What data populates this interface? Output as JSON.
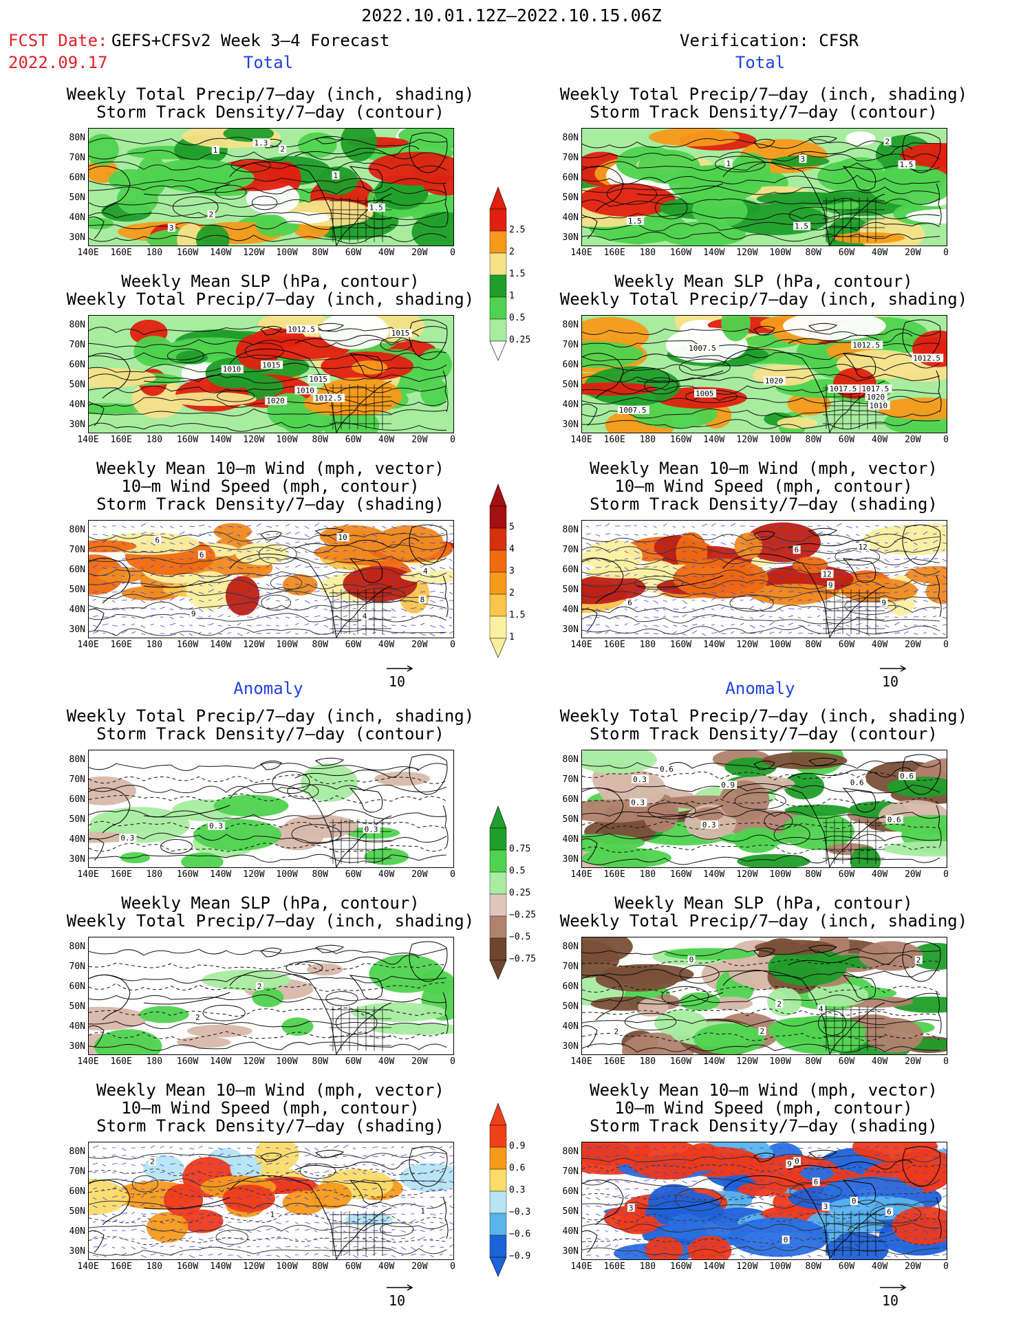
{
  "header": {
    "date_range": "2022.10.01.12Z–2022.10.15.06Z",
    "fcst_date_label": "FCST Date:",
    "model_label": "GEFS+CFSv2 Week 3–4 Forecast",
    "fcst_date": "2022.09.17",
    "verification": "Verification: CFSR"
  },
  "sections": {
    "total_left": "Total",
    "total_right": "Total",
    "anomaly_left": "Anomaly",
    "anomaly_right": "Anomaly"
  },
  "panel_titles": {
    "precip_storm": [
      "Weekly Total Precip/7–day (inch, shading)",
      "Storm Track Density/7–day (contour)"
    ],
    "slp_precip": [
      "Weekly Mean SLP (hPa, contour)",
      "Weekly Total Precip/7–day (inch, shading)"
    ],
    "wind_storm": [
      "Weekly Mean 10–m Wind (mph, vector)",
      "10–m Wind Speed (mph, contour)",
      "Storm Track Density/7–day (shading)"
    ]
  },
  "axes": {
    "lat_labels": [
      "80N",
      "70N",
      "60N",
      "50N",
      "40N",
      "30N"
    ],
    "lon_labels": [
      "140E",
      "160E",
      "180",
      "160W",
      "140W",
      "120W",
      "100W",
      "80W",
      "60W",
      "40W",
      "20W",
      "0"
    ]
  },
  "vector_ref": "10",
  "colorbars": {
    "precip_total": {
      "labels": [
        "2.5",
        "2",
        "1.5",
        "1",
        "0.5",
        "0.25"
      ],
      "colors": [
        "#e02010",
        "#f79a1a",
        "#f7e28a",
        "#1f9e2a",
        "#4fd34f",
        "#a8eca0"
      ]
    },
    "storm_total": {
      "labels": [
        "5",
        "4",
        "3",
        "2",
        "1.5",
        "1"
      ],
      "colors": [
        "#a51010",
        "#d63010",
        "#f06a10",
        "#f79a1a",
        "#fbc44a",
        "#fbf0a0"
      ]
    },
    "precip_anom": {
      "labels": [
        "0.75",
        "0.5",
        "0.25",
        "−0.25",
        "−0.5",
        "−0.75"
      ],
      "colors": [
        "#1f9e2a",
        "#4fd34f",
        "#a8eca0",
        "#e2c6bc",
        "#b0826e",
        "#6e4630"
      ]
    },
    "storm_anom": {
      "labels": [
        "0.9",
        "0.6",
        "0.3",
        "−0.3",
        "−0.6",
        "−0.9"
      ],
      "colors": [
        "#f0401a",
        "#f79a1a",
        "#fbdc6a",
        "#b6e4f4",
        "#5ab4ec",
        "#1e62d8"
      ]
    }
  },
  "map_colors": {
    "precip_light": "#a8eca0",
    "precip_mid": "#4fd34f",
    "precip_dark": "#1f9e2a",
    "precip_yellow": "#f7e28a",
    "precip_orange": "#f79a1a",
    "precip_red": "#e02010",
    "storm_orange": "#f08a20",
    "storm_red": "#c02010",
    "brown_light": "#d8b8aa",
    "brown_dark": "#7a5038",
    "blue_anom": "#2a70e0",
    "red_anom": "#ee3a1a"
  },
  "contour_labels": {
    "fcst_precip_total": [
      "1",
      "1.5",
      "2",
      "3",
      "1.3",
      "2",
      "1"
    ],
    "verif_precip_total": [
      "1.5",
      "1",
      "1.5",
      "2",
      "1.5",
      "3"
    ],
    "fcst_slp_total": [
      "1012.5",
      "1015",
      "1012.5",
      "1010",
      "1010",
      "1015",
      "1020",
      "1015"
    ],
    "verif_slp_total": [
      "1010",
      "1007.5",
      "1007.5",
      "1005",
      "1012.5",
      "1017.5",
      "1020",
      "1012.5",
      "1017.5",
      "1020"
    ],
    "fcst_wind_total": [
      "4",
      "6",
      "8",
      "4",
      "9",
      "10",
      "6"
    ],
    "verif_wind_total": [
      "6",
      "9",
      "6",
      "12",
      "9",
      "12"
    ],
    "fcst_precip_anom": [
      "0.3",
      "0.3",
      "0.3"
    ],
    "verif_precip_anom": [
      "0.3",
      "0.9",
      "0.6",
      "0.3",
      "0.6",
      "0.6",
      "0.3",
      "0.6"
    ],
    "fcst_slp_anom": [
      "2",
      "2"
    ],
    "verif_slp_anom": [
      "2",
      "2",
      "0",
      "2",
      "4",
      "2"
    ],
    "fcst_wind_anom": [
      "1",
      "2",
      "1"
    ],
    "verif_wind_anom": [
      "0",
      "3",
      "0",
      "6",
      "9",
      "3",
      "6",
      "0"
    ]
  }
}
